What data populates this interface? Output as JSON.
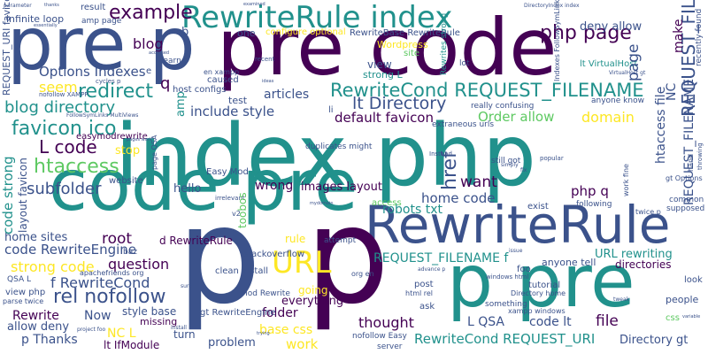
{
  "palette": [
    "#440154",
    "#3b528b",
    "#21918c",
    "#5ec962",
    "#fde725"
  ],
  "background": "#ffffff",
  "words": [
    {
      "text": "index php",
      "color": "#21918c",
      "vertical": false
    },
    {
      "text": "pre code",
      "color": "#440154",
      "vertical": false
    },
    {
      "text": "p pre",
      "color": "#21918c",
      "vertical": false
    },
    {
      "text": "code pre",
      "color": "#21918c",
      "vertical": false
    },
    {
      "text": "p",
      "color": "#3b528b",
      "vertical": false
    },
    {
      "text": "pre p",
      "color": "#3b528b",
      "vertical": false
    },
    {
      "text": "RewriteRule",
      "color": "#3b528b",
      "vertical": false
    },
    {
      "text": "RewriteRule index",
      "color": "#21918c",
      "vertical": false
    },
    {
      "text": "p",
      "color": "#440154",
      "vertical": false
    },
    {
      "text": "RewriteCond REQUEST_FILENAME",
      "color": "#21918c",
      "vertical": false
    },
    {
      "text": "URL",
      "color": "#fde725",
      "vertical": false
    },
    {
      "text": "php page",
      "color": "#440154",
      "vertical": false
    },
    {
      "text": "example",
      "color": "#440154",
      "vertical": false
    },
    {
      "text": "redirect",
      "color": "#21918c",
      "vertical": false
    },
    {
      "text": "blog directory",
      "color": "#21918c",
      "vertical": false
    },
    {
      "text": "favicon ico",
      "color": "#21918c",
      "vertical": false
    },
    {
      "text": "L code",
      "color": "#440154",
      "vertical": false
    },
    {
      "text": "htaccess",
      "color": "#5ec962",
      "vertical": false
    },
    {
      "text": "subfolder",
      "color": "#3b528b",
      "vertical": false
    },
    {
      "text": "rel nofollow",
      "color": "#3b528b",
      "vertical": false
    },
    {
      "text": "f RewriteCond",
      "color": "#3b528b",
      "vertical": false
    },
    {
      "text": "question",
      "color": "#440154",
      "vertical": false
    },
    {
      "text": "strong code",
      "color": "#fde725",
      "vertical": false
    },
    {
      "text": "code RewriteEngine",
      "color": "#3b528b",
      "vertical": false
    },
    {
      "text": "root",
      "color": "#440154",
      "vertical": false
    },
    {
      "text": "home sites",
      "color": "#3b528b",
      "vertical": false
    },
    {
      "text": "Options Indexes",
      "color": "#3b528b",
      "vertical": false
    },
    {
      "text": "seem",
      "color": "#fde725",
      "vertical": false
    },
    {
      "text": "blog",
      "color": "#440154",
      "vertical": false
    },
    {
      "text": "lt Directory",
      "color": "#3b528b",
      "vertical": false
    },
    {
      "text": "default favicon",
      "color": "#440154",
      "vertical": false
    },
    {
      "text": "include style",
      "color": "#3b528b",
      "vertical": false
    },
    {
      "text": "articles",
      "color": "#3b528b",
      "vertical": false
    },
    {
      "text": "Order allow",
      "color": "#5ec962",
      "vertical": false
    },
    {
      "text": "domain",
      "color": "#fde725",
      "vertical": false
    },
    {
      "text": "deny allow",
      "color": "#3b528b",
      "vertical": false
    },
    {
      "text": "want",
      "color": "#440154",
      "vertical": false
    },
    {
      "text": "wrong",
      "color": "#440154",
      "vertical": false
    },
    {
      "text": "images layout",
      "color": "#440154",
      "vertical": false
    },
    {
      "text": "home code",
      "color": "#3b528b",
      "vertical": false
    },
    {
      "text": "robots txt",
      "color": "#21918c",
      "vertical": false
    },
    {
      "text": "php q",
      "color": "#440154",
      "vertical": false
    },
    {
      "text": "REQUEST_FILENAME f",
      "color": "#21918c",
      "vertical": false
    },
    {
      "text": "URL rewriting",
      "color": "#21918c",
      "vertical": false
    },
    {
      "text": "anyone tell",
      "color": "#3b528b",
      "vertical": false
    },
    {
      "text": "directories",
      "color": "#440154",
      "vertical": false
    },
    {
      "text": "L QSA",
      "color": "#3b528b",
      "vertical": false
    },
    {
      "text": "code lt",
      "color": "#3b528b",
      "vertical": false
    },
    {
      "text": "file",
      "color": "#440154",
      "vertical": false
    },
    {
      "text": "thought",
      "color": "#440154",
      "vertical": false
    },
    {
      "text": "RewriteCond REQUEST_URI",
      "color": "#21918c",
      "vertical": false
    },
    {
      "text": "Directory gt",
      "color": "#3b528b",
      "vertical": false
    },
    {
      "text": "base css",
      "color": "#fde725",
      "vertical": false
    },
    {
      "text": "work",
      "color": "#fde725",
      "vertical": false
    },
    {
      "text": "problem",
      "color": "#3b528b",
      "vertical": false
    },
    {
      "text": "folder",
      "color": "#440154",
      "vertical": false
    },
    {
      "text": "everything",
      "color": "#440154",
      "vertical": false
    },
    {
      "text": "NC L",
      "color": "#fde725",
      "vertical": false
    },
    {
      "text": "turn",
      "color": "#3b528b",
      "vertical": false
    },
    {
      "text": "lt IfModule",
      "color": "#440154",
      "vertical": false
    },
    {
      "text": "p Thanks",
      "color": "#3b528b",
      "vertical": false
    },
    {
      "text": "allow deny",
      "color": "#3b528b",
      "vertical": false
    },
    {
      "text": "Rewrite",
      "color": "#440154",
      "vertical": false
    },
    {
      "text": "Now",
      "color": "#3b528b",
      "vertical": false
    },
    {
      "text": "style base",
      "color": "#3b528b",
      "vertical": false
    },
    {
      "text": "hello",
      "color": "#3b528b",
      "vertical": false
    },
    {
      "text": "stop",
      "color": "#fde725",
      "vertical": false
    },
    {
      "text": "test",
      "color": "#3b528b",
      "vertical": false
    },
    {
      "text": "view",
      "color": "#3b528b",
      "vertical": false
    },
    {
      "text": "strong L",
      "color": "#21918c",
      "vertical": false
    },
    {
      "text": "lt VirtualHost",
      "color": "#21918c",
      "vertical": false
    },
    {
      "text": "infinite loop",
      "color": "#3b528b",
      "vertical": false
    },
    {
      "text": "result",
      "color": "#3b528b",
      "vertical": false
    },
    {
      "text": "one",
      "color": "#3b528b",
      "vertical": false
    },
    {
      "text": "configure optional",
      "color": "#fde725",
      "vertical": false
    },
    {
      "text": "RewriteBase RewriteRule",
      "color": "#3b528b",
      "vertical": false
    },
    {
      "text": "Wordpress",
      "color": "#fde725",
      "vertical": false
    },
    {
      "text": "site",
      "color": "#5ec962",
      "vertical": false
    },
    {
      "text": "learn p",
      "color": "#3b528b",
      "vertical": false
    },
    {
      "text": "host configs",
      "color": "#3b528b",
      "vertical": false
    },
    {
      "text": "caused",
      "color": "#3b528b",
      "vertical": false
    },
    {
      "text": "easymodrewrite",
      "color": "#440154",
      "vertical": false
    },
    {
      "text": "Easy Mod",
      "color": "#3b528b",
      "vertical": false
    },
    {
      "text": "d RewriteRule",
      "color": "#440154",
      "vertical": false
    },
    {
      "text": "rule",
      "color": "#fde725",
      "vertical": false
    },
    {
      "text": "stackoverflow",
      "color": "#3b528b",
      "vertical": false
    },
    {
      "text": "clean install",
      "color": "#3b528b",
      "vertical": false
    },
    {
      "text": "Mod Rewrite",
      "color": "#3b528b",
      "vertical": false
    },
    {
      "text": "going",
      "color": "#fde725",
      "vertical": false
    },
    {
      "text": "gt RewriteEngine",
      "color": "#3b528b",
      "vertical": false
    },
    {
      "text": "missing",
      "color": "#440154",
      "vertical": false
    },
    {
      "text": "really confusing",
      "color": "#3b528b",
      "vertical": false
    },
    {
      "text": "extraneous urls",
      "color": "#3b528b",
      "vertical": false
    },
    {
      "text": "anyone know",
      "color": "#3b528b",
      "vertical": false
    },
    {
      "text": "still got",
      "color": "#3b528b",
      "vertical": false
    },
    {
      "text": "duplicates might",
      "color": "#3b528b",
      "vertical": false
    },
    {
      "text": "exist",
      "color": "#3b528b",
      "vertical": false
    },
    {
      "text": "following",
      "color": "#3b528b",
      "vertical": false
    },
    {
      "text": "tutorial",
      "color": "#3b528b",
      "vertical": false
    },
    {
      "text": "Directory home",
      "color": "#3b528b",
      "vertical": false
    },
    {
      "text": "xampp windows",
      "color": "#3b528b",
      "vertical": false
    },
    {
      "text": "something",
      "color": "#3b528b",
      "vertical": false
    },
    {
      "text": "post",
      "color": "#3b528b",
      "vertical": false
    },
    {
      "text": "ask",
      "color": "#3b528b",
      "vertical": false
    },
    {
      "text": "server",
      "color": "#3b528b",
      "vertical": false
    },
    {
      "text": "html rel",
      "color": "#3b528b",
      "vertical": false
    },
    {
      "text": "nofollow Easy",
      "color": "#3b528b",
      "vertical": false
    },
    {
      "text": "attempt",
      "color": "#3b528b",
      "vertical": false
    },
    {
      "text": "baz",
      "color": "#3b528b",
      "vertical": false
    },
    {
      "text": "foo",
      "color": "#3b528b",
      "vertical": false
    },
    {
      "text": "look",
      "color": "#3b528b",
      "vertical": false
    },
    {
      "text": "people",
      "color": "#3b528b",
      "vertical": false
    },
    {
      "text": "QSA L",
      "color": "#3b528b",
      "vertical": false
    },
    {
      "text": "view php",
      "color": "#3b528b",
      "vertical": false
    },
    {
      "text": "parse twice",
      "color": "#3b528b",
      "vertical": false
    },
    {
      "text": "common",
      "color": "#3b528b",
      "vertical": false
    },
    {
      "text": "twice p",
      "color": "#3b528b",
      "vertical": false
    },
    {
      "text": "supposed",
      "color": "#3b528b",
      "vertical": false
    },
    {
      "text": "gt Options",
      "color": "#3b528b",
      "vertical": false
    },
    {
      "text": "apachefriends org",
      "color": "#3b528b",
      "vertical": false
    },
    {
      "text": "access",
      "color": "#5ec962",
      "vertical": false
    },
    {
      "text": "css",
      "color": "#5ec962",
      "vertical": false
    },
    {
      "text": "website",
      "color": "#3b528b",
      "vertical": false
    },
    {
      "text": "Instead",
      "color": "#3b528b",
      "vertical": false
    },
    {
      "text": "li",
      "color": "#3b528b",
      "vertical": false
    },
    {
      "text": "lot",
      "color": "#3b528b",
      "vertical": false
    },
    {
      "text": "en xampp",
      "color": "#3b528b",
      "vertical": false
    },
    {
      "text": "recent",
      "color": "#3b528b",
      "vertical": false
    },
    {
      "text": "cycles p",
      "color": "#3b528b",
      "vertical": false
    },
    {
      "text": "b",
      "color": "#3b528b",
      "vertical": false
    },
    {
      "text": "e",
      "color": "#3b528b",
      "vertical": false
    },
    {
      "text": "q",
      "color": "#440154",
      "vertical": false
    },
    {
      "text": "popular",
      "color": "#3b528b",
      "vertical": false
    },
    {
      "text": "simply",
      "color": "#3b528b",
      "vertical": false
    },
    {
      "text": "irrelevant",
      "color": "#3b528b",
      "vertical": false
    },
    {
      "text": "nofollow XAMPP",
      "color": "#3b528b",
      "vertical": false
    },
    {
      "text": "FollowSymLinks MultiViews",
      "color": "#3b528b",
      "vertical": false
    },
    {
      "text": "project foo",
      "color": "#3b528b",
      "vertical": false
    },
    {
      "text": "install",
      "color": "#3b528b",
      "vertical": false
    },
    {
      "text": "advance p",
      "color": "#3b528b",
      "vertical": false
    },
    {
      "text": "windows html",
      "color": "#3b528b",
      "vertical": false
    },
    {
      "text": "org en",
      "color": "#3b528b",
      "vertical": false
    },
    {
      "text": "issue",
      "color": "#3b528b",
      "vertical": false
    },
    {
      "text": "v2",
      "color": "#3b528b",
      "vertical": false
    },
    {
      "text": "sure",
      "color": "#3b528b",
      "vertical": false
    },
    {
      "text": "fix",
      "color": "#3b528b",
      "vertical": false
    },
    {
      "text": "tweak",
      "color": "#3b528b",
      "vertical": false
    },
    {
      "text": "variable",
      "color": "#3b528b",
      "vertical": false
    },
    {
      "text": "parameter",
      "color": "#3b528b",
      "vertical": false
    },
    {
      "text": "thanks",
      "color": "#3b528b",
      "vertical": false
    },
    {
      "text": "essentially",
      "color": "#3b528b",
      "vertical": false
    },
    {
      "text": "amp page",
      "color": "#3b528b",
      "vertical": false
    },
    {
      "text": "ideas",
      "color": "#3b528b",
      "vertical": false
    },
    {
      "text": "examined",
      "color": "#3b528b",
      "vertical": false
    },
    {
      "text": "mydomain",
      "color": "#3b528b",
      "vertical": false
    },
    {
      "text": "trying",
      "color": "#3b528b",
      "vertical": false
    },
    {
      "text": "pages work",
      "color": "#3b528b",
      "vertical": false
    },
    {
      "text": "accessed",
      "color": "#3b528b",
      "vertical": false
    },
    {
      "text": "VirtualHost gt",
      "color": "#3b528b",
      "vertical": false
    },
    {
      "text": "DirectoryIndex index",
      "color": "#3b528b",
      "vertical": false
    },
    {
      "text": "REQUEST_FILENAME d",
      "color": "#3b528b",
      "vertical": true
    },
    {
      "text": "REQUEST_URI favicon",
      "color": "#3b528b",
      "vertical": true
    },
    {
      "text": "layout favicon",
      "color": "#3b528b",
      "vertical": true
    },
    {
      "text": "code strong",
      "color": "#21918c",
      "vertical": true
    },
    {
      "text": "href",
      "color": "#3b528b",
      "vertical": true
    },
    {
      "text": "page",
      "color": "#3b528b",
      "vertical": true
    },
    {
      "text": "htaccess file",
      "color": "#3b528b",
      "vertical": true
    },
    {
      "text": "make",
      "color": "#440154",
      "vertical": true
    },
    {
      "text": "REQUEST_FILENAME",
      "color": "#3b528b",
      "vertical": true
    },
    {
      "text": "NC",
      "color": "#3b528b",
      "vertical": true
    },
    {
      "text": "amp",
      "color": "#21918c",
      "vertical": true
    },
    {
      "text": "toobos",
      "color": "#5ec962",
      "vertical": true
    },
    {
      "text": "Indexes FollowSymLinks",
      "color": "#3b528b",
      "vertical": true
    },
    {
      "text": "recently found",
      "color": "#3b528b",
      "vertical": true
    },
    {
      "text": "work fine",
      "color": "#3b528b",
      "vertical": true
    },
    {
      "text": "page QSA",
      "color": "#3b528b",
      "vertical": true
    },
    {
      "text": "Rewrites strong",
      "color": "#21918c",
      "vertical": true
    },
    {
      "text": "hand",
      "color": "#3b528b",
      "vertical": true
    },
    {
      "text": "throwing",
      "color": "#3b528b",
      "vertical": true
    }
  ]
}
